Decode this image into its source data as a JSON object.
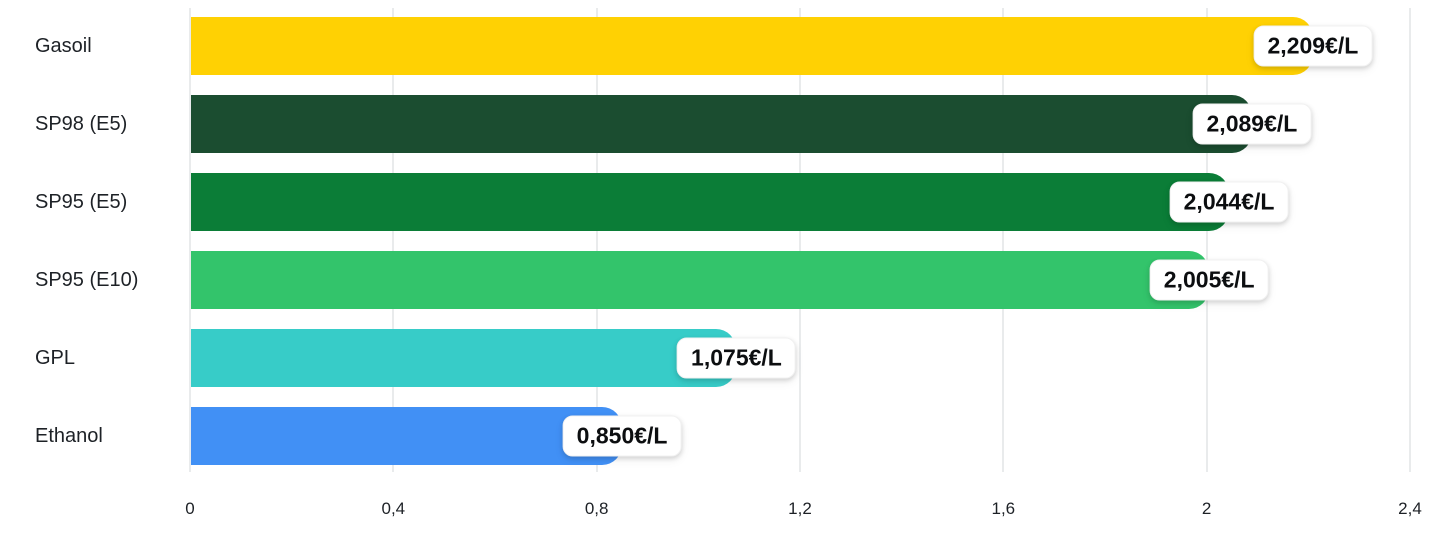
{
  "chart_data": {
    "type": "bar",
    "orientation": "horizontal",
    "title": "",
    "xlabel": "",
    "ylabel": "",
    "unit": "€/L",
    "categories": [
      "Gasoil",
      "SP98 (E5)",
      "SP95 (E5)",
      "SP95 (E10)",
      "GPL",
      "Ethanol"
    ],
    "values": [
      2.209,
      2.089,
      2.044,
      2.005,
      1.075,
      0.85
    ],
    "value_labels": [
      "2,209€/L",
      "2,089€/L",
      "2,044€/L",
      "2,005€/L",
      "1,075€/L",
      "0,850€/L"
    ],
    "bar_colors": [
      "#FFD103",
      "#1B4D30",
      "#0B7D37",
      "#33C46B",
      "#37CCC8",
      "#4190F5"
    ],
    "xlim": [
      0,
      2.4
    ],
    "x_ticks": [
      0,
      0.4,
      0.8,
      1.2,
      1.6,
      2,
      2.4
    ],
    "x_tick_labels": [
      "0",
      "0,4",
      "0,8",
      "1,2",
      "1,6",
      "2",
      "2,4"
    ],
    "grid": "vertical",
    "legend": "none"
  },
  "colors": {
    "background": "#FFFFFF",
    "grid_line": "#E9EBEC",
    "text": "#1D2126",
    "pill_background": "#FFFFFF"
  }
}
